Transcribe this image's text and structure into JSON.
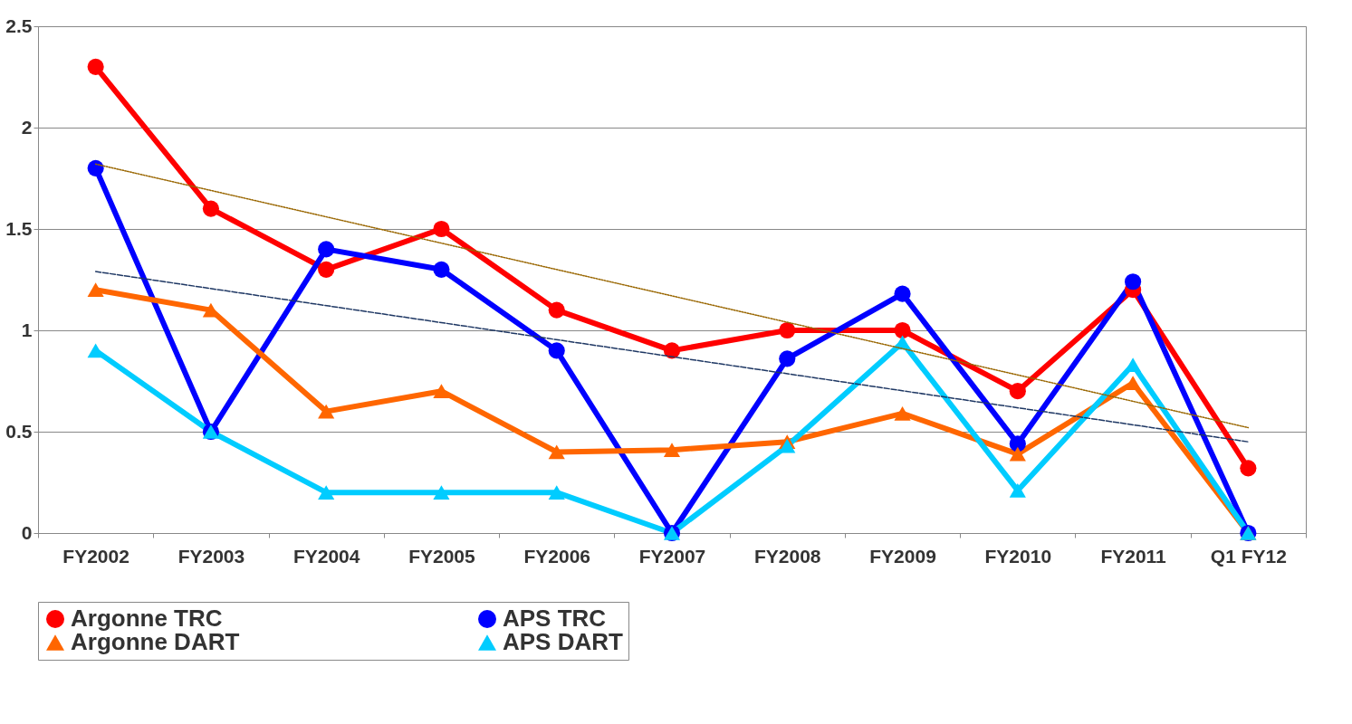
{
  "chart_data": {
    "type": "line",
    "categories": [
      "FY2002",
      "FY2003",
      "FY2004",
      "FY2005",
      "FY2006",
      "FY2007",
      "FY2008",
      "FY2009",
      "FY2010",
      "FY2011",
      "Q1 FY12"
    ],
    "ylim": [
      0,
      2.5
    ],
    "yticks": [
      0,
      0.5,
      1,
      1.5,
      2,
      2.5
    ],
    "grid": "y",
    "legend": "bottom",
    "series": [
      {
        "name": "Argonne TRC",
        "color": "#ff0000",
        "marker": "circle",
        "values": [
          2.3,
          1.6,
          1.3,
          1.5,
          1.1,
          0.9,
          1.0,
          1.0,
          0.7,
          1.2,
          0.32
        ]
      },
      {
        "name": "APS TRC",
        "color": "#0000ff",
        "marker": "circle",
        "values": [
          1.8,
          0.5,
          1.4,
          1.3,
          0.9,
          0,
          0.86,
          1.18,
          0.44,
          1.24,
          0
        ]
      },
      {
        "name": "Argonne DART",
        "color": "#ff6600",
        "marker": "triangle",
        "values": [
          1.2,
          1.1,
          0.6,
          0.7,
          0.4,
          0.41,
          0.45,
          0.59,
          0.39,
          0.74,
          0
        ]
      },
      {
        "name": "APS DART",
        "color": "#00ccff",
        "marker": "triangle",
        "values": [
          0.9,
          0.5,
          0.2,
          0.2,
          0.2,
          0,
          0.43,
          0.94,
          0.21,
          0.83,
          0
        ]
      },
      {
        "type": "line",
        "color": "#996600",
        "line_style": "dotted",
        "x": [
          "FY2002",
          "Q1 FY12"
        ],
        "values": [
          1.82,
          0.52
        ]
      },
      {
        "type": "line",
        "color": "#1f3864",
        "line_style": "dashed",
        "x": [
          "FY2002",
          "Q1 FY12"
        ],
        "values": [
          1.29,
          0.45
        ]
      }
    ]
  }
}
